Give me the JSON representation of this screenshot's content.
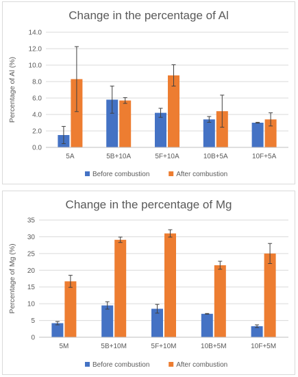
{
  "chart_data": [
    {
      "type": "bar",
      "title": "Change in the percentage of Al",
      "xlabel": "",
      "ylabel": "Percentage of Al (%)",
      "ylim": [
        0,
        14
      ],
      "ytick_step": 2,
      "ytick_decimals": 1,
      "grid": true,
      "legend": "bottom",
      "categories": [
        "5A",
        "5B+10A",
        "5F+10A",
        "10B+5A",
        "10F+5A"
      ],
      "series": [
        {
          "name": "Before combustion",
          "color": "#4472c4",
          "values": [
            1.5,
            5.8,
            4.2,
            3.4,
            3.0
          ],
          "errors": [
            1.05,
            1.65,
            0.55,
            0.35,
            0.05
          ]
        },
        {
          "name": "After combustion",
          "color": "#ed7d31",
          "values": [
            8.3,
            5.7,
            8.75,
            4.4,
            3.4
          ],
          "errors": [
            3.95,
            0.35,
            1.3,
            1.95,
            0.8
          ]
        }
      ]
    },
    {
      "type": "bar",
      "title": "Change in the percentage of Mg",
      "xlabel": "",
      "ylabel": "Percentage of Mg (%)",
      "ylim": [
        0,
        35
      ],
      "ytick_step": 5,
      "ytick_decimals": 0,
      "grid": true,
      "legend": "bottom",
      "categories": [
        "5M",
        "5B+10M",
        "5F+10M",
        "10B+5M",
        "10F+5M"
      ],
      "series": [
        {
          "name": "Before combustion",
          "color": "#4472c4",
          "values": [
            4.2,
            9.5,
            8.5,
            7.0,
            3.3
          ],
          "errors": [
            0.5,
            1.1,
            1.3,
            0.1,
            0.4
          ]
        },
        {
          "name": "After combustion",
          "color": "#ed7d31",
          "values": [
            16.7,
            29.1,
            31.0,
            21.5,
            25.0
          ],
          "errors": [
            1.8,
            0.8,
            1.1,
            1.2,
            3.0
          ]
        }
      ]
    }
  ]
}
